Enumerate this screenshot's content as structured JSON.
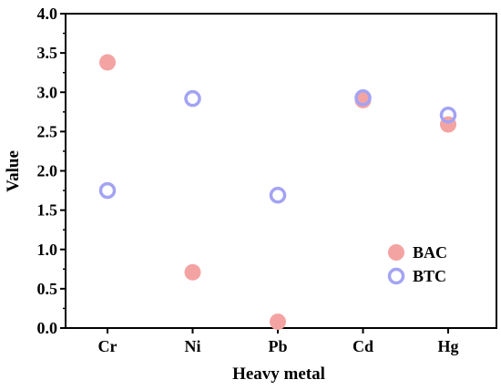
{
  "chart_data": {
    "type": "scatter",
    "xlabel": "Heavy metal",
    "ylabel": "Value",
    "categories": [
      "Cr",
      "Ni",
      "Pb",
      "Cd",
      "Hg"
    ],
    "ylim": [
      0.0,
      4.0
    ],
    "yticks": [
      "0.0",
      "0.5",
      "1.0",
      "1.5",
      "2.0",
      "2.5",
      "3.0",
      "3.5",
      "4.0"
    ],
    "grid": false,
    "legend_position": "bottom-right",
    "series": [
      {
        "name": "BAC",
        "marker": "filled-circle",
        "color": "#f4a3a3",
        "values": [
          3.38,
          0.71,
          0.08,
          2.9,
          2.59
        ]
      },
      {
        "name": "BTC",
        "marker": "open-circle",
        "color": "#a3a3f4",
        "values": [
          1.75,
          2.92,
          1.69,
          2.93,
          2.71
        ]
      }
    ]
  }
}
